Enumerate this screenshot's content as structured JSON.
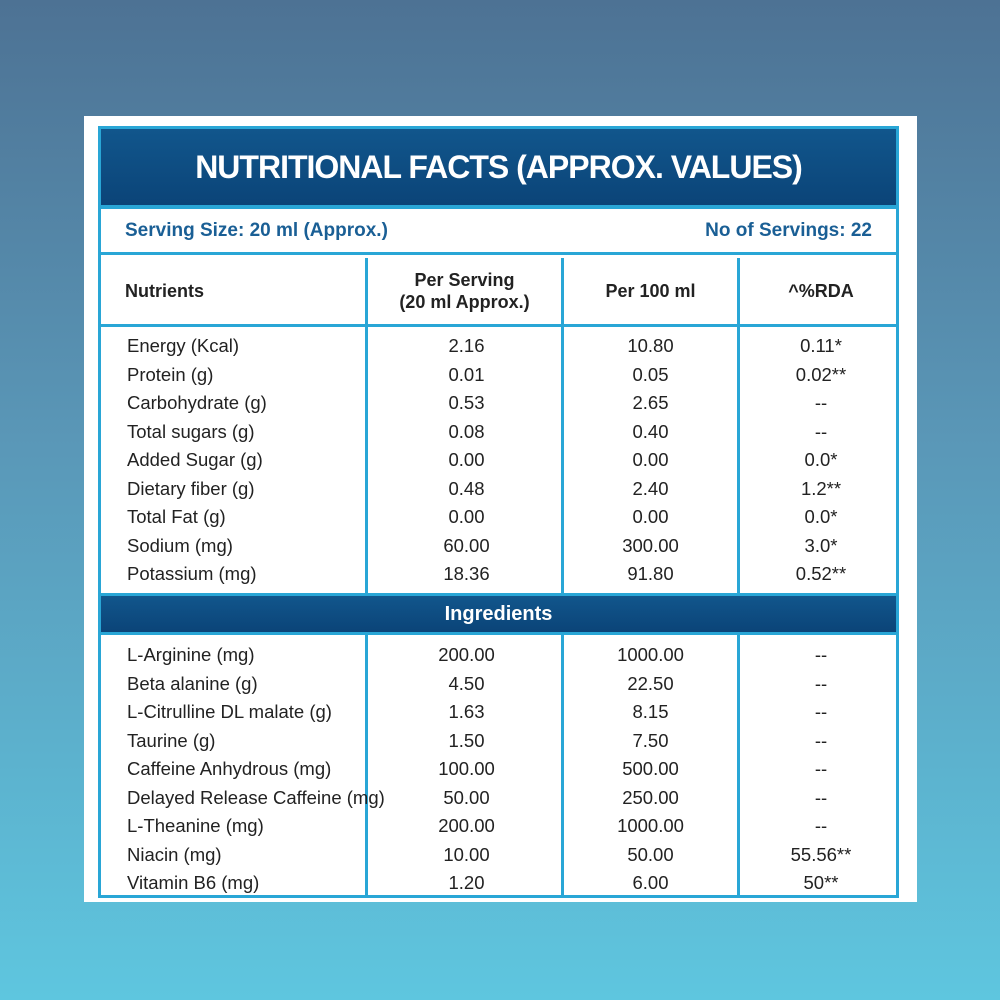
{
  "title": "NUTRITIONAL FACTS (APPROX. VALUES)",
  "serving": {
    "size": "Serving Size: 20 ml (Approx.)",
    "count": "No of Servings: 22"
  },
  "columns": {
    "nutrients": "Nutrients",
    "per_serving_line1": "Per Serving",
    "per_serving_line2": "(20 ml Approx.)",
    "per_100ml": "Per 100 ml",
    "rda": "^%RDA"
  },
  "nutrients": [
    {
      "name": "Energy (Kcal)",
      "per_serving": "2.16",
      "per_100ml": "10.80",
      "rda": "0.11*"
    },
    {
      "name": "Protein (g)",
      "per_serving": "0.01",
      "per_100ml": "0.05",
      "rda": "0.02**"
    },
    {
      "name": "Carbohydrate (g)",
      "per_serving": "0.53",
      "per_100ml": "2.65",
      "rda": "--"
    },
    {
      "name": "Total sugars (g)",
      "per_serving": "0.08",
      "per_100ml": "0.40",
      "rda": "--"
    },
    {
      "name": "Added Sugar (g)",
      "per_serving": "0.00",
      "per_100ml": "0.00",
      "rda": "0.0*"
    },
    {
      "name": "Dietary fiber (g)",
      "per_serving": "0.48",
      "per_100ml": "2.40",
      "rda": "1.2**"
    },
    {
      "name": "Total Fat (g)",
      "per_serving": "0.00",
      "per_100ml": "0.00",
      "rda": "0.0*"
    },
    {
      "name": "Sodium (mg)",
      "per_serving": "60.00",
      "per_100ml": "300.00",
      "rda": "3.0*"
    },
    {
      "name": "Potassium (mg)",
      "per_serving": "18.36",
      "per_100ml": "91.80",
      "rda": "0.52**"
    }
  ],
  "ingredients_heading": "Ingredients",
  "ingredients": [
    {
      "name": "L-Arginine (mg)",
      "per_serving": "200.00",
      "per_100ml": "1000.00",
      "rda": "--"
    },
    {
      "name": "Beta alanine (g)",
      "per_serving": "4.50",
      "per_100ml": "22.50",
      "rda": "--"
    },
    {
      "name": "L-Citrulline DL malate (g)",
      "per_serving": "1.63",
      "per_100ml": "8.15",
      "rda": "--"
    },
    {
      "name": "Taurine (g)",
      "per_serving": "1.50",
      "per_100ml": "7.50",
      "rda": "--"
    },
    {
      "name": "Caffeine Anhydrous (mg)",
      "per_serving": "100.00",
      "per_100ml": "500.00",
      "rda": "--"
    },
    {
      "name": "Delayed Release Caffeine (mg)",
      "per_serving": "50.00",
      "per_100ml": "250.00",
      "rda": "--"
    },
    {
      "name": "L-Theanine (mg)",
      "per_serving": "200.00",
      "per_100ml": "1000.00",
      "rda": "--"
    },
    {
      "name": "Niacin (mg)",
      "per_serving": "10.00",
      "per_100ml": "50.00",
      "rda": "55.56**"
    },
    {
      "name": "Vitamin B6 (mg)",
      "per_serving": "1.20",
      "per_100ml": "6.00",
      "rda": "50**"
    }
  ],
  "colors": {
    "header_blue": "#0b4478",
    "border_cyan": "#29a6d6",
    "serving_text": "#1a5f95"
  }
}
